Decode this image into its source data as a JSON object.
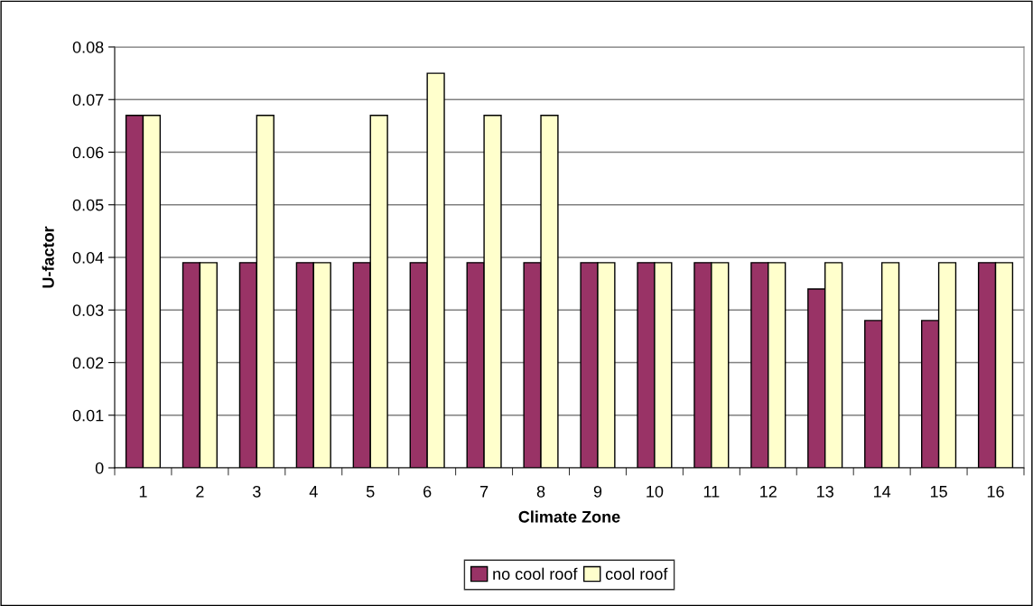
{
  "chart_data": {
    "type": "bar",
    "xlabel": "Climate Zone",
    "ylabel": "U-factor",
    "categories": [
      "1",
      "2",
      "3",
      "4",
      "5",
      "6",
      "7",
      "8",
      "9",
      "10",
      "11",
      "12",
      "13",
      "14",
      "15",
      "16"
    ],
    "series": [
      {
        "name": "no cool roof",
        "color": "#993366",
        "values": [
          0.067,
          0.039,
          0.039,
          0.039,
          0.039,
          0.039,
          0.039,
          0.039,
          0.039,
          0.039,
          0.039,
          0.039,
          0.034,
          0.028,
          0.028,
          0.039
        ]
      },
      {
        "name": "cool roof",
        "color": "#ffffcc",
        "values": [
          0.067,
          0.039,
          0.067,
          0.039,
          0.067,
          0.075,
          0.067,
          0.067,
          0.039,
          0.039,
          0.039,
          0.039,
          0.039,
          0.039,
          0.039,
          0.039
        ]
      }
    ],
    "ylim": [
      0,
      0.08
    ],
    "yticks": [
      0,
      0.01,
      0.02,
      0.03,
      0.04,
      0.05,
      0.06,
      0.07,
      0.08
    ],
    "grid": "y",
    "legend": "bottom"
  }
}
